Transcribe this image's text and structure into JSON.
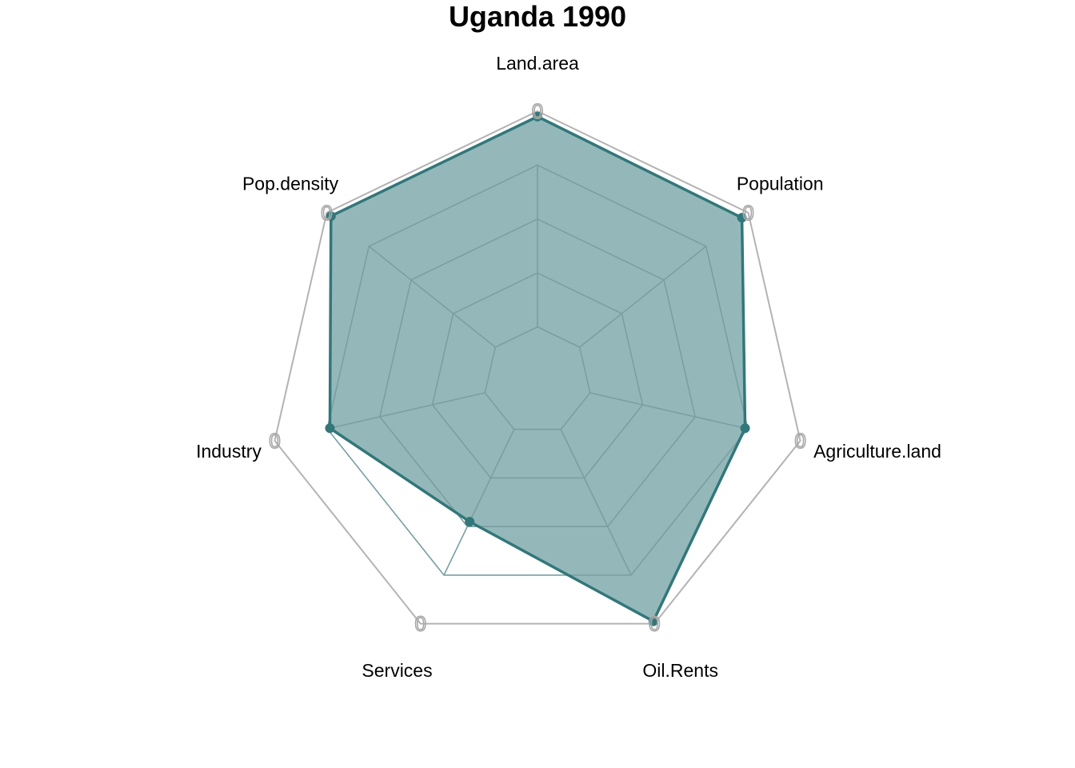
{
  "chart_data": {
    "type": "radar",
    "title": "Uganda 1990",
    "axes": [
      "Land.area",
      "Population",
      "Agriculture.land",
      "Oil.Rents",
      "Services",
      "Industry",
      "Pop.density"
    ],
    "axis_tick_label": "0",
    "range": [
      0,
      1
    ],
    "grid_levels": [
      0.2,
      0.4,
      0.6,
      0.8
    ],
    "series": [
      {
        "values": [
          0.98,
          0.97,
          0.79,
          0.99,
          0.58,
          0.79,
          0.98
        ]
      }
    ],
    "colors": {
      "series_line": "#32777a",
      "series_fill": "#32777a",
      "outer_grid": "#b3b3b3",
      "inner_grid": "#7a9fa2"
    },
    "grid": true,
    "legend": "none"
  }
}
